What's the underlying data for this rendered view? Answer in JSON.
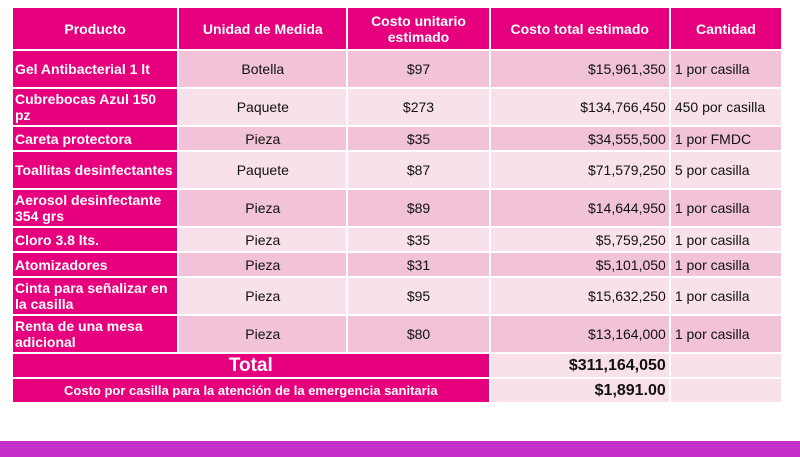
{
  "headers": [
    "Producto",
    "Unidad de Medida",
    "Costo unitario estimado",
    "Costo total estimado",
    "Cantidad"
  ],
  "rows": [
    {
      "producto": "Gel Antibacterial 1 lt",
      "unidad": "Botella",
      "costo_unitario": "$97",
      "costo_total": "$15,961,350",
      "cantidad": "1 por casilla"
    },
    {
      "producto": "Cubrebocas Azul 150 pz",
      "unidad": "Paquete",
      "costo_unitario": "$273",
      "costo_total": "$134,766,450",
      "cantidad": "450 por casilla"
    },
    {
      "producto": "Careta protectora",
      "unidad": "Pieza",
      "costo_unitario": "$35",
      "costo_total": "$34,555,500",
      "cantidad": "1 por FMDC"
    },
    {
      "producto": "Toallitas desinfectantes",
      "unidad": "Paquete",
      "costo_unitario": "$87",
      "costo_total": "$71,579,250",
      "cantidad": "5 por casilla"
    },
    {
      "producto": "Aerosol desinfectante 354 grs",
      "unidad": "Pieza",
      "costo_unitario": "$89",
      "costo_total": "$14,644,950",
      "cantidad": "1 por casilla"
    },
    {
      "producto": "Cloro 3.8 lts.",
      "unidad": "Pieza",
      "costo_unitario": "$35",
      "costo_total": "$5,759,250",
      "cantidad": "1 por casilla"
    },
    {
      "producto": "Atomizadores",
      "unidad": "Pieza",
      "costo_unitario": "$31",
      "costo_total": "$5,101,050",
      "cantidad": "1 por casilla"
    },
    {
      "producto": "Cinta para señalizar en la casilla",
      "unidad": "Pieza",
      "costo_unitario": "$95",
      "costo_total": "$15,632,250",
      "cantidad": "1 por casilla"
    },
    {
      "producto": "Renta de una mesa adicional",
      "unidad": "Pieza",
      "costo_unitario": "$80",
      "costo_total": "$13,164,000",
      "cantidad": "1 por casilla"
    }
  ],
  "total": {
    "label": "Total",
    "value": "$311,164,050"
  },
  "per_casilla": {
    "label": "Costo por casilla para la atención de la emergencia sanitaria",
    "value": "$1,891.00"
  },
  "colors": {
    "header": "#e6007e",
    "row_dark": "#f2c3d8",
    "row_light": "#f9e1ec",
    "bottom_bar": "#c42fc8"
  }
}
